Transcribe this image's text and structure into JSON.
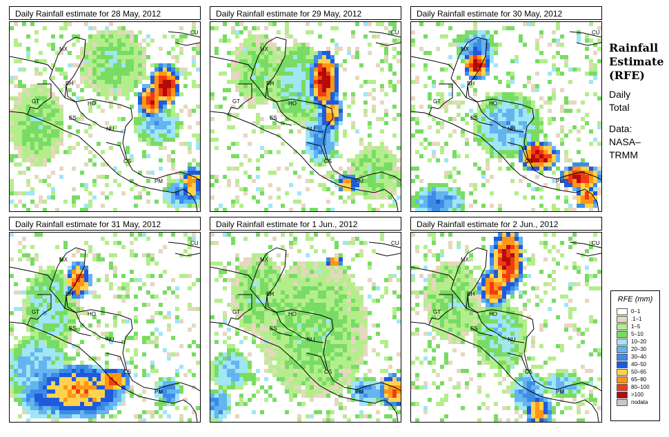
{
  "panels": [
    {
      "title": "Daily Rainfall estimate for  28 May, 2012"
    },
    {
      "title": "Daily Rainfall estimate for  29 May, 2012"
    },
    {
      "title": "Daily Rainfall estimate for  30 May, 2012"
    },
    {
      "title": "Daily Rainfall estimate for  31 May, 2012"
    },
    {
      "title": "Daily Rainfall estimate for  1 Jun., 2012"
    },
    {
      "title": "Daily Rainfall estimate for  2 Jun., 2012"
    }
  ],
  "country_labels": [
    "MX",
    "CU",
    "BH",
    "GT",
    "HO",
    "ES",
    "NU",
    "CS",
    "PM"
  ],
  "side": {
    "title_line1": "Rainfall",
    "title_line2": "Estimate",
    "title_line3": "(RFE)",
    "sub_line1": "Daily",
    "sub_line2": "Total",
    "data_line1": "Data:",
    "data_line2": "NASA–",
    "data_line3": "TRMM"
  },
  "legend": {
    "title": "RFE (mm)",
    "items": [
      {
        "label": "0–1",
        "color": "#ffffff"
      },
      {
        "label": ".1–1",
        "color": "#e6d7bf"
      },
      {
        "label": "1–5",
        "color": "#b4ee8c"
      },
      {
        "label": "5–10",
        "color": "#78dc64"
      },
      {
        "label": "10–20",
        "color": "#a0e6f5"
      },
      {
        "label": "20–30",
        "color": "#64b4f0"
      },
      {
        "label": "30–40",
        "color": "#3c8ce6"
      },
      {
        "label": "40–50",
        "color": "#1e5adc"
      },
      {
        "label": "50–65",
        "color": "#ffd250"
      },
      {
        "label": "65–80",
        "color": "#ff9614"
      },
      {
        "label": "80–100",
        "color": "#f03c14"
      },
      {
        "label": ">100",
        "color": "#b40a0a"
      },
      {
        "label": "nodata",
        "color": "#c8c8c8"
      }
    ]
  }
}
